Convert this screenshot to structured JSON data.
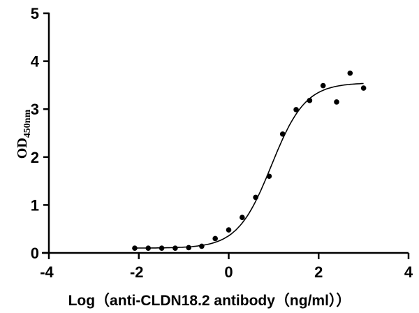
{
  "chart_data": {
    "type": "scatter",
    "title": "",
    "xlabel": "Log（anti-CLDN18.2 antibody（ng/ml））",
    "ylabel_main": "OD",
    "ylabel_sub": "450nm",
    "xlim": [
      -4,
      4
    ],
    "ylim": [
      0,
      5
    ],
    "x_ticks": [
      -4,
      -2,
      0,
      2,
      4
    ],
    "y_ticks": [
      0,
      1,
      2,
      3,
      4,
      5
    ],
    "grid": false,
    "legend": null,
    "series": [
      {
        "name": "measured",
        "type": "scatter",
        "x": [
          -2.09,
          -1.79,
          -1.49,
          -1.19,
          -0.89,
          -0.6,
          -0.3,
          0.0,
          0.3,
          0.6,
          0.9,
          1.2,
          1.5,
          1.8,
          2.1,
          2.4,
          2.7,
          3.0
        ],
        "y": [
          0.1,
          0.1,
          0.1,
          0.1,
          0.11,
          0.14,
          0.3,
          0.48,
          0.74,
          1.16,
          1.6,
          2.48,
          2.99,
          3.18,
          3.49,
          3.15,
          3.75,
          3.44
        ]
      },
      {
        "name": "4PL fit",
        "type": "line",
        "model": "four-parameter logistic",
        "bottom": 0.1,
        "top": 3.55,
        "logEC50": 0.95,
        "hill": 1.15,
        "x_range": [
          -2.09,
          3.0
        ]
      }
    ]
  }
}
